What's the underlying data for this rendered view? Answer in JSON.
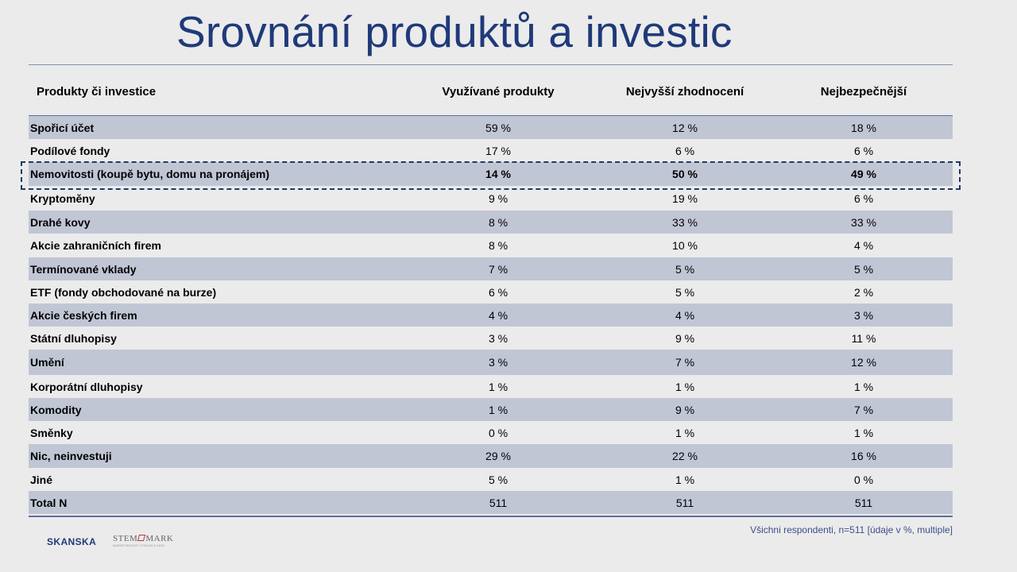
{
  "title": "Srovnání produktů a investic",
  "headers": [
    "Produkty či investice",
    "Využívané produkty",
    "Nejvyšší zhodnocení",
    "Nejbezpečnější"
  ],
  "rows": [
    {
      "label": "Spořicí účet",
      "used": "59 %",
      "highest_return": "12 %",
      "safest": "18 %"
    },
    {
      "label": "Podílové fondy",
      "used": "17 %",
      "highest_return": "6 %",
      "safest": "6 %"
    },
    {
      "label": "Nemovitosti (koupě bytu, domu na pronájem)",
      "used": "14 %",
      "highest_return": "50 %",
      "safest": "49 %",
      "highlighted": true
    },
    {
      "label": "Kryptoměny",
      "used": "9 %",
      "highest_return": "19 %",
      "safest": "6 %"
    },
    {
      "label": "Drahé kovy",
      "used": "8 %",
      "highest_return": "33 %",
      "safest": "33 %"
    },
    {
      "label": "Akcie zahraničních firem",
      "used": "8 %",
      "highest_return": "10 %",
      "safest": "4 %"
    },
    {
      "label": "Termínované vklady",
      "used": "7 %",
      "highest_return": "5 %",
      "safest": "5 %"
    },
    {
      "label": "ETF (fondy obchodované na burze)",
      "used": "6 %",
      "highest_return": "5 %",
      "safest": "2 %"
    },
    {
      "label": "Akcie českých firem",
      "used": "4 %",
      "highest_return": "4 %",
      "safest": "3 %"
    },
    {
      "label": "Státní dluhopisy",
      "used": "3 %",
      "highest_return": "9 %",
      "safest": "11 %"
    },
    {
      "label": "Umění",
      "used": "3 %",
      "highest_return": "7 %",
      "safest": "12 %"
    },
    {
      "label": "Korporátní dluhopisy",
      "used": "1 %",
      "highest_return": "1 %",
      "safest": "1 %"
    },
    {
      "label": "Komodity",
      "used": "1 %",
      "highest_return": "9 %",
      "safest": "7 %"
    },
    {
      "label": "Směnky",
      "used": "0 %",
      "highest_return": "1 %",
      "safest": "1 %"
    },
    {
      "label": "Nic, neinvestuji",
      "used": "29 %",
      "highest_return": "22 %",
      "safest": "16 %"
    },
    {
      "label": "Jiné",
      "used": "5 %",
      "highest_return": "1 %",
      "safest": "0 %"
    },
    {
      "label": "Total N",
      "used": "511",
      "highest_return": "511",
      "safest": "511"
    }
  ],
  "footnote": "Všichni respondenti,  n=511 [údaje v  %, multiple]",
  "logos": {
    "skanska": "SKANSKA",
    "stem_left": "STEM",
    "stem_right": "MARK",
    "stem_sub": "MARKETINGOVÝ VÝZKUM & DATA"
  },
  "colors": {
    "title": "#1f3a7a",
    "row_shade": "#c1c6d5",
    "background": "#ebebeb",
    "highlight_border": "#1f3a6a"
  }
}
